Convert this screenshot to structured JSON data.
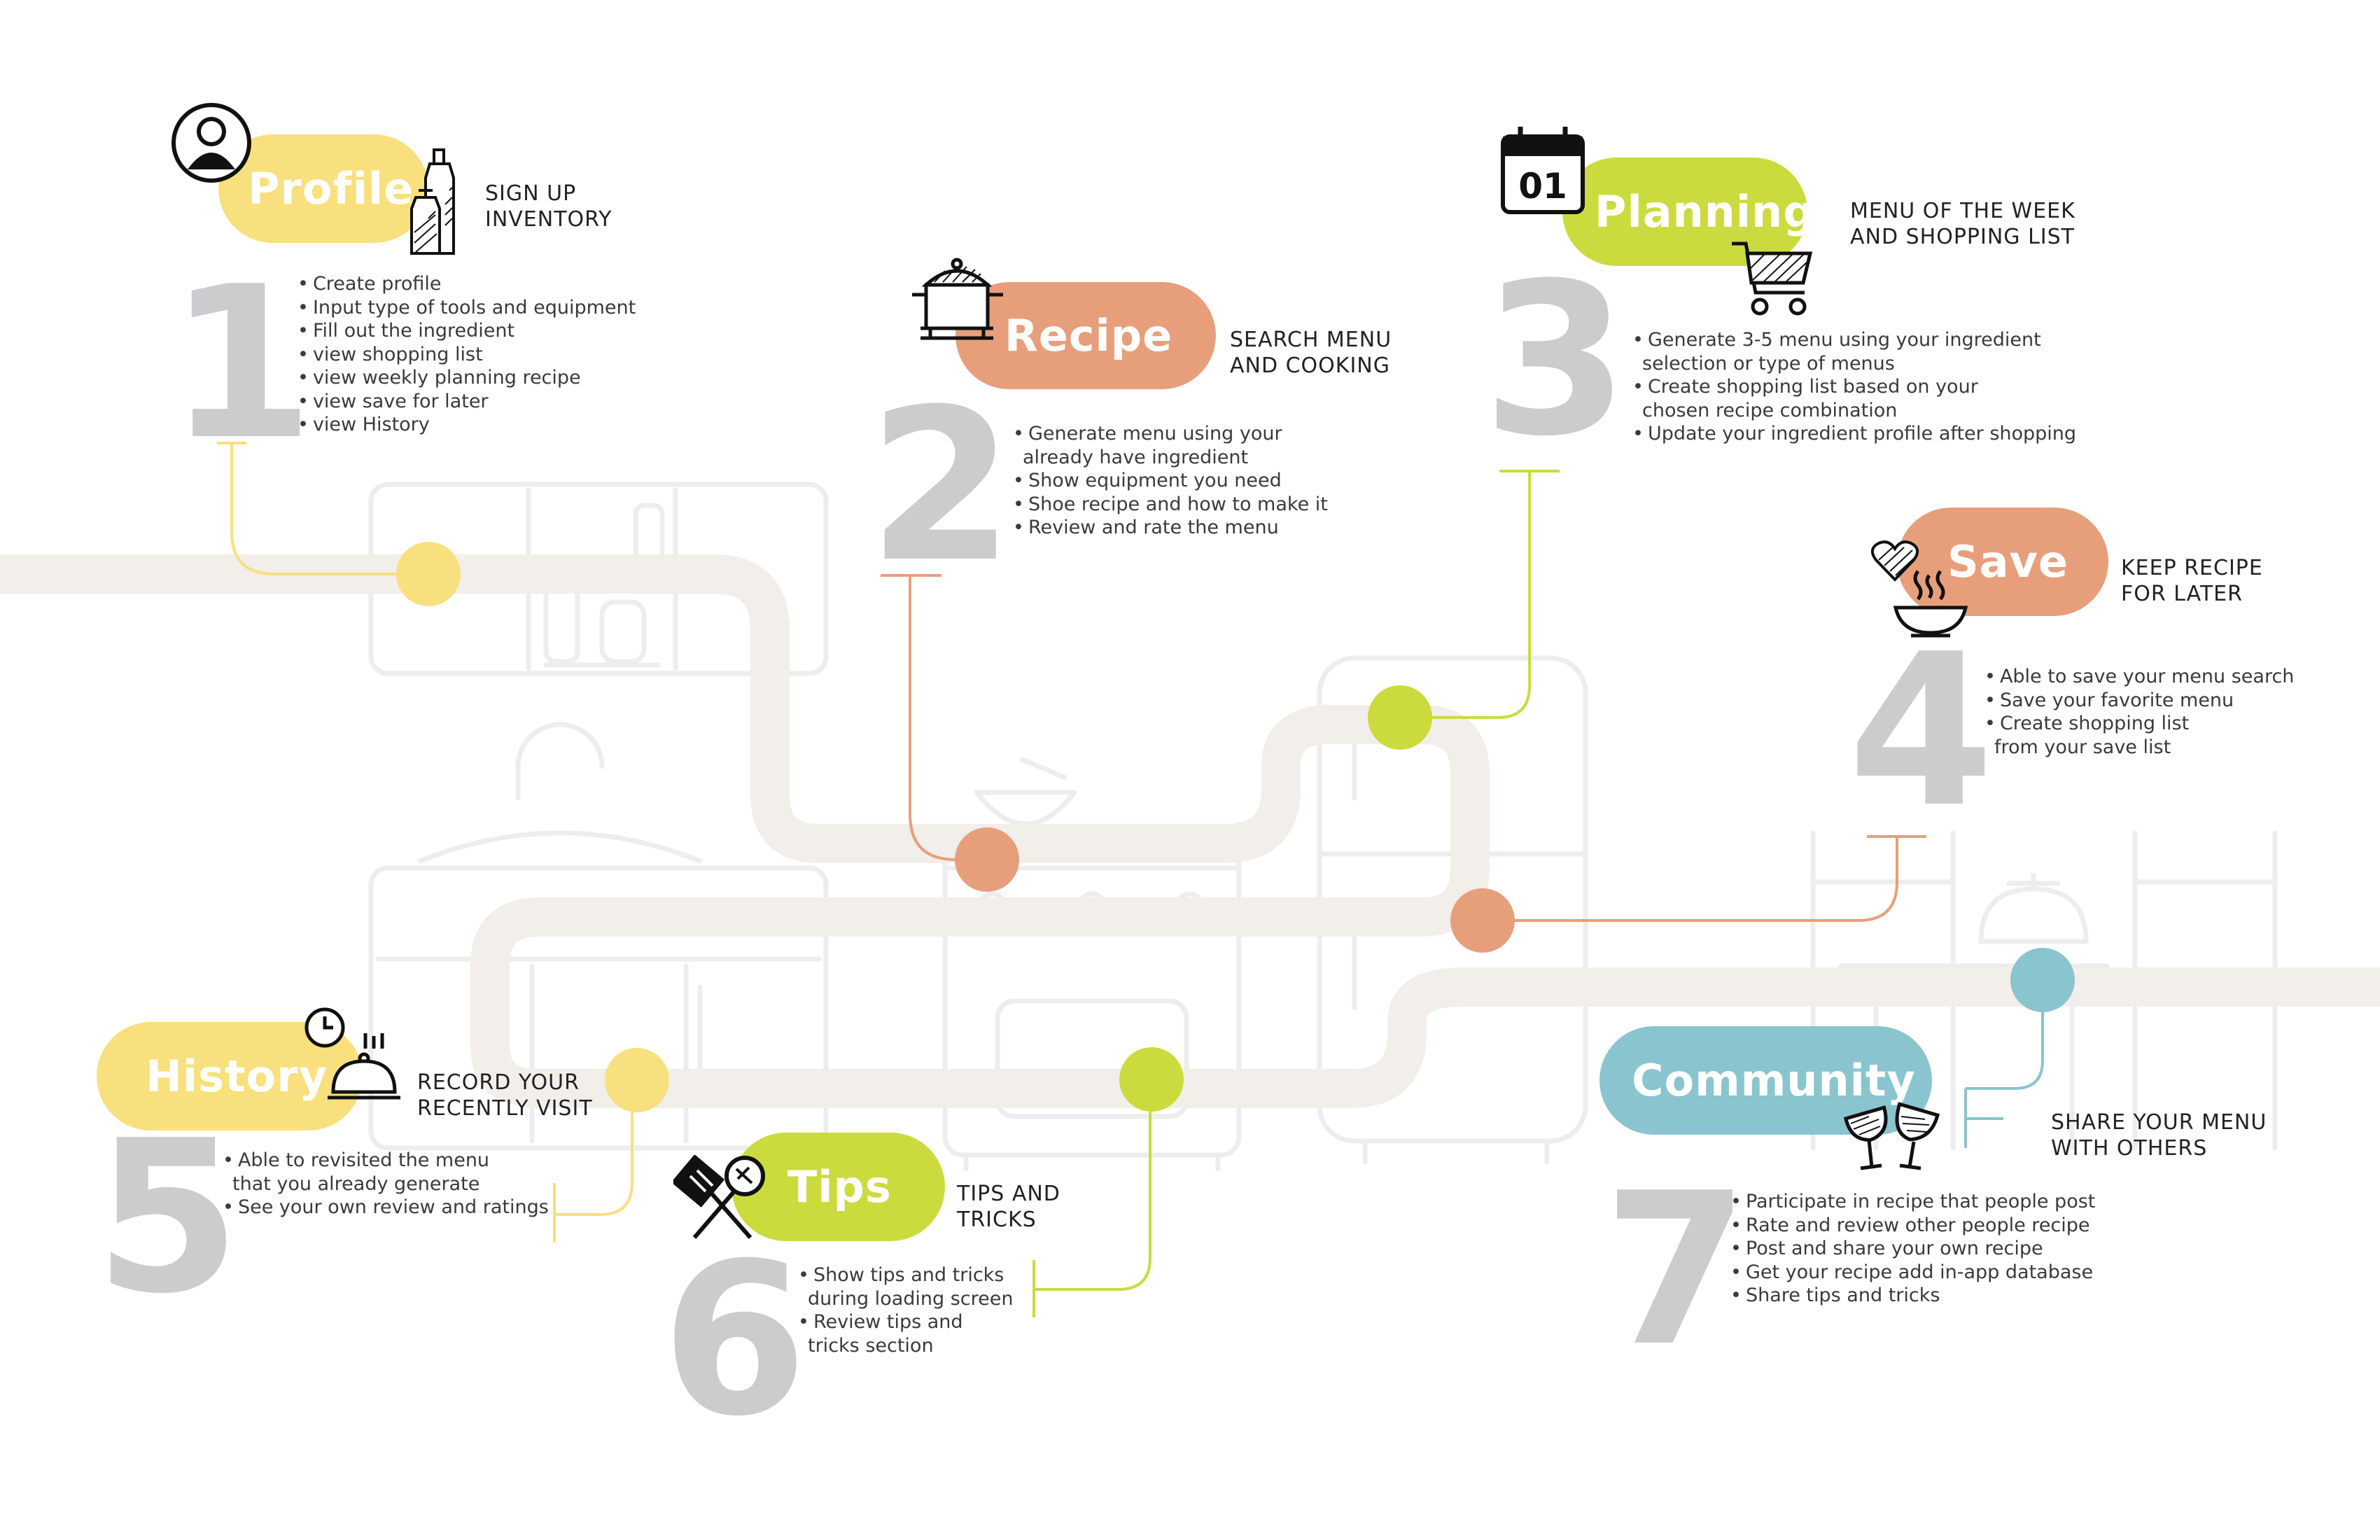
{
  "colors": {
    "yellow": "#f8e07e",
    "salmon": "#e79f7b",
    "lime": "#cbdb3e",
    "teal": "#8ac4cf",
    "number_gray": "#cccccf",
    "path_beige": "#f2eeea",
    "line_art": "#ededed"
  },
  "steps": [
    {
      "number": "1",
      "title": "Profile",
      "subtitle": [
        "SIGN UP",
        "INVENTORY"
      ],
      "color": "yellow",
      "icons": [
        "user-icon",
        "bottles-icon"
      ],
      "bullets": [
        "Create profile",
        "Input type of tools and equipment",
        "Fill out the ingredient",
        "view shopping list",
        "view weekly planning recipe",
        "view save for later",
        "view History"
      ]
    },
    {
      "number": "2",
      "title": "Recipe",
      "subtitle": [
        "SEARCH MENU",
        "AND COOKING"
      ],
      "color": "salmon",
      "icons": [
        "cooking-pot-icon"
      ],
      "bullets": [
        "Generate menu using your\nalready have ingredient",
        "Show equipment you need",
        "Shoe recipe and how to make it",
        "Review and rate the menu"
      ]
    },
    {
      "number": "3",
      "title": "Planning",
      "subtitle": [
        "MENU OF THE WEEK",
        "AND SHOPPING LIST"
      ],
      "color": "lime",
      "icons": [
        "calendar-icon",
        "shopping-cart-icon"
      ],
      "calendar_text": "01",
      "bullets": [
        "Generate 3-5 menu using your ingredient\nselection or type of menus",
        "Create shopping list based on your\nchosen recipe combination",
        "Update your ingredient profile after shopping"
      ]
    },
    {
      "number": "4",
      "title": "Save",
      "subtitle": [
        "KEEP RECIPE",
        "FOR LATER"
      ],
      "color": "salmon",
      "icons": [
        "heart-icon",
        "hot-bowl-icon"
      ],
      "bullets": [
        "Able to save your menu search",
        "Save your favorite menu",
        "Create shopping list\nfrom your save list"
      ]
    },
    {
      "number": "5",
      "title": "History",
      "subtitle": [
        "RECORD YOUR",
        "RECENTLY VISIT"
      ],
      "color": "yellow",
      "icons": [
        "clock-icon",
        "cloche-icon"
      ],
      "bullets": [
        "Able to revisited the menu\nthat you already generate",
        "See your own review and ratings"
      ]
    },
    {
      "number": "6",
      "title": "Tips",
      "subtitle": [
        "TIPS AND",
        "TRICKS"
      ],
      "color": "lime",
      "icons": [
        "spatula-icon"
      ],
      "bullets": [
        "Show tips and tricks\nduring loading screen",
        "Review tips and\ntricks section"
      ]
    },
    {
      "number": "7",
      "title": "Community",
      "subtitle": [
        "SHARE YOUR MENU",
        "WITH OTHERS"
      ],
      "color": "teal",
      "icons": [
        "wine-glasses-icon"
      ],
      "bullets": [
        "Participate in recipe that people post",
        "Rate and review other people recipe",
        "Post and share your own recipe",
        "Get your recipe add in-app database",
        "Share tips and tricks"
      ]
    }
  ]
}
